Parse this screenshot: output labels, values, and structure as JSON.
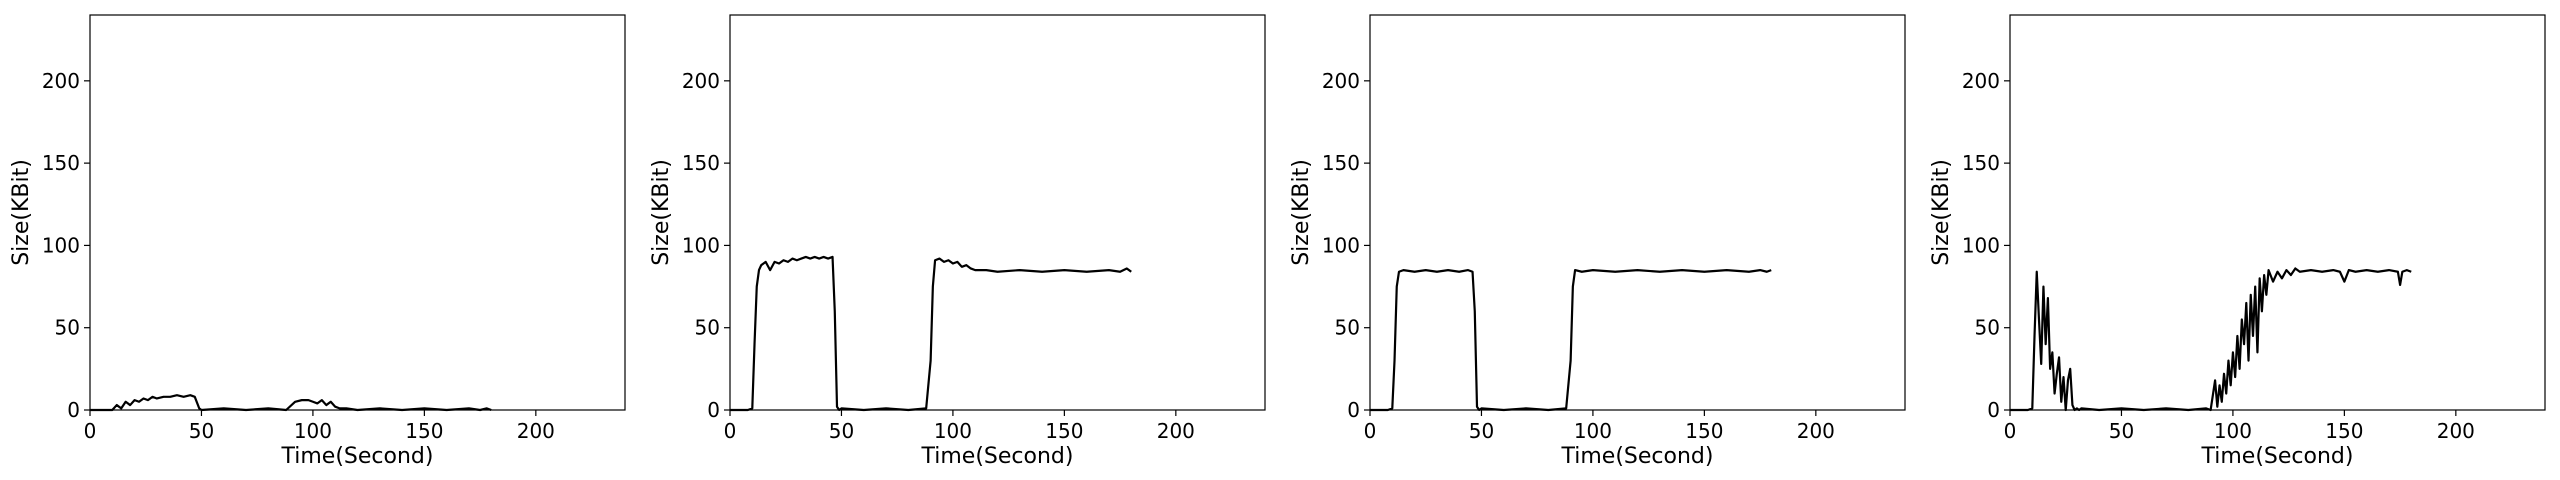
{
  "chart_data": [
    {
      "type": "line",
      "xlabel": "Time(Second)",
      "ylabel": "Size(KBit)",
      "xlim": [
        0,
        240
      ],
      "ylim": [
        0,
        240
      ],
      "xticks": [
        0,
        50,
        100,
        150,
        200
      ],
      "yticks": [
        0,
        50,
        100,
        150,
        200
      ],
      "grid": false,
      "series": [
        {
          "color": "#000000",
          "x": [
            0,
            10,
            12,
            14,
            16,
            18,
            20,
            22,
            24,
            26,
            28,
            30,
            33,
            36,
            39,
            42,
            45,
            47,
            49,
            50,
            60,
            70,
            80,
            88,
            92,
            95,
            98,
            100,
            102,
            104,
            106,
            108,
            110,
            112,
            115,
            120,
            130,
            140,
            150,
            160,
            170,
            175,
            178,
            180
          ],
          "y": [
            0,
            0,
            3,
            1,
            5,
            3,
            6,
            5,
            7,
            6,
            8,
            7,
            8,
            8,
            9,
            8,
            9,
            8,
            1,
            0,
            1,
            0,
            1,
            0,
            5,
            6,
            6,
            5,
            4,
            6,
            3,
            5,
            2,
            1,
            1,
            0,
            1,
            0,
            1,
            0,
            1,
            0,
            1,
            0
          ]
        }
      ]
    },
    {
      "type": "line",
      "xlabel": "Time(Second)",
      "ylabel": "Size(KBit)",
      "xlim": [
        0,
        240
      ],
      "ylim": [
        0,
        240
      ],
      "xticks": [
        0,
        50,
        100,
        150,
        200
      ],
      "yticks": [
        0,
        50,
        100,
        150,
        200
      ],
      "grid": false,
      "series": [
        {
          "color": "#000000",
          "x": [
            0,
            8,
            10,
            11,
            12,
            13,
            14,
            16,
            18,
            20,
            22,
            24,
            26,
            28,
            30,
            32,
            34,
            36,
            38,
            40,
            42,
            44,
            46,
            47,
            48,
            49,
            50,
            60,
            70,
            80,
            88,
            90,
            91,
            92,
            94,
            96,
            98,
            100,
            102,
            104,
            106,
            108,
            110,
            115,
            120,
            130,
            140,
            150,
            160,
            170,
            175,
            178,
            180
          ],
          "y": [
            0,
            0,
            1,
            40,
            75,
            85,
            88,
            90,
            85,
            90,
            89,
            91,
            90,
            92,
            91,
            92,
            93,
            92,
            93,
            92,
            93,
            92,
            93,
            60,
            2,
            0,
            1,
            0,
            1,
            0,
            1,
            30,
            75,
            91,
            92,
            90,
            91,
            89,
            90,
            87,
            88,
            86,
            85,
            85,
            84,
            85,
            84,
            85,
            84,
            85,
            84,
            86,
            84
          ]
        }
      ]
    },
    {
      "type": "line",
      "xlabel": "Time(Second)",
      "ylabel": "Size(KBit)",
      "xlim": [
        0,
        240
      ],
      "ylim": [
        0,
        240
      ],
      "xticks": [
        0,
        50,
        100,
        150,
        200
      ],
      "yticks": [
        0,
        50,
        100,
        150,
        200
      ],
      "grid": false,
      "series": [
        {
          "color": "#000000",
          "x": [
            0,
            8,
            10,
            11,
            12,
            13,
            15,
            20,
            25,
            30,
            35,
            40,
            44,
            46,
            47,
            48,
            49,
            50,
            60,
            70,
            80,
            88,
            90,
            91,
            92,
            95,
            100,
            110,
            120,
            130,
            140,
            150,
            160,
            170,
            175,
            178,
            180
          ],
          "y": [
            0,
            0,
            1,
            30,
            75,
            84,
            85,
            84,
            85,
            84,
            85,
            84,
            85,
            84,
            60,
            2,
            0,
            1,
            0,
            1,
            0,
            1,
            30,
            75,
            85,
            84,
            85,
            84,
            85,
            84,
            85,
            84,
            85,
            84,
            85,
            84,
            85
          ]
        }
      ]
    },
    {
      "type": "line",
      "xlabel": "Time(Second)",
      "ylabel": "Size(KBit)",
      "xlim": [
        0,
        240
      ],
      "ylim": [
        0,
        240
      ],
      "xticks": [
        0,
        50,
        100,
        150,
        200
      ],
      "yticks": [
        0,
        50,
        100,
        150,
        200
      ],
      "grid": false,
      "series": [
        {
          "color": "#000000",
          "x": [
            0,
            8,
            10,
            11,
            12,
            13,
            14,
            15,
            16,
            17,
            18,
            19,
            20,
            21,
            22,
            23,
            24,
            25,
            26,
            27,
            28,
            29,
            30,
            31,
            32,
            40,
            50,
            60,
            70,
            80,
            88,
            90,
            92,
            93,
            94,
            95,
            96,
            97,
            98,
            99,
            100,
            101,
            102,
            103,
            104,
            105,
            106,
            107,
            108,
            109,
            110,
            111,
            112,
            113,
            114,
            115,
            116,
            118,
            120,
            122,
            124,
            126,
            128,
            130,
            135,
            140,
            145,
            148,
            150,
            152,
            155,
            160,
            165,
            170,
            174,
            175,
            176,
            178,
            180
          ],
          "y": [
            0,
            0,
            1,
            45,
            84,
            55,
            28,
            75,
            40,
            68,
            25,
            35,
            10,
            22,
            32,
            5,
            20,
            0,
            18,
            25,
            3,
            0,
            1,
            0,
            1,
            0,
            1,
            0,
            1,
            0,
            1,
            0,
            18,
            2,
            15,
            5,
            22,
            10,
            30,
            15,
            35,
            20,
            45,
            25,
            55,
            40,
            65,
            30,
            70,
            45,
            75,
            35,
            80,
            60,
            82,
            70,
            85,
            78,
            84,
            80,
            85,
            82,
            86,
            84,
            85,
            84,
            85,
            84,
            78,
            85,
            84,
            85,
            84,
            85,
            84,
            76,
            84,
            85,
            84
          ]
        }
      ]
    }
  ]
}
